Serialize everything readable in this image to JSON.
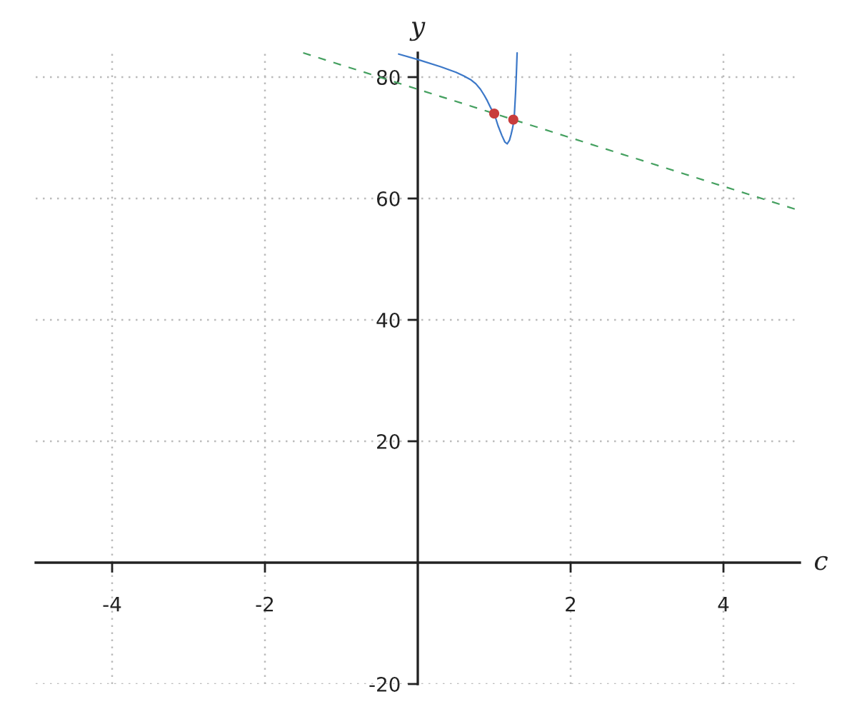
{
  "chart_data": {
    "type": "line",
    "xlabel": "c",
    "ylabel": "y",
    "xlim": [
      -5,
      5
    ],
    "ylim": [
      -20,
      84
    ],
    "xticks": [
      -4,
      -2,
      2,
      4
    ],
    "yticks": [
      -20,
      20,
      40,
      60,
      80
    ],
    "grid": true,
    "series": [
      {
        "color": "#3c78c8",
        "line_style": "solid",
        "marker": "none",
        "x": [
          -0.25,
          0,
          0.3,
          0.5,
          0.6,
          0.69,
          0.76,
          0.82,
          0.87,
          0.91,
          0.96,
          1.0,
          1.05,
          1.1,
          1.14,
          1.17,
          1.2,
          1.22,
          1.24,
          1.26,
          1.28,
          1.29,
          1.3
        ],
        "values": [
          83.8,
          82.9,
          81.7,
          80.8,
          80.2,
          79.6,
          78.9,
          78,
          77,
          76.1,
          74.8,
          74,
          72,
          70.4,
          69.3,
          69,
          69.6,
          70.5,
          71.6,
          72.9,
          77.5,
          80.5,
          84
        ]
      },
      {
        "color": "#45a060",
        "line_style": "dashed",
        "marker": "none",
        "x": [
          -1.5,
          5
        ],
        "values": [
          84,
          58
        ]
      },
      {
        "type": "scatter",
        "color": "#c83c3c",
        "marker": "circle",
        "x": [
          1,
          1.25
        ],
        "values": [
          74,
          73
        ]
      }
    ]
  }
}
